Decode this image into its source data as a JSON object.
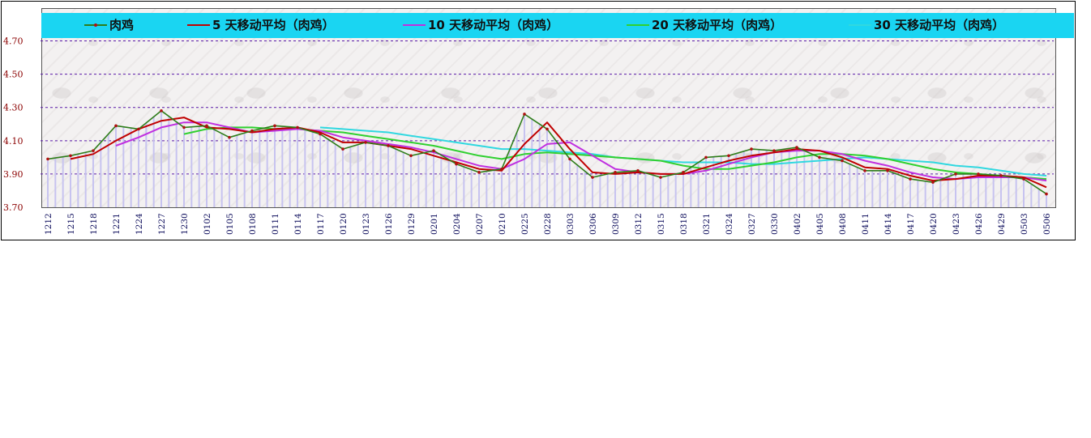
{
  "chart_data": {
    "type": "line",
    "title": "",
    "xlabel": "",
    "ylabel": "",
    "ylim": [
      3.7,
      4.8
    ],
    "yticks": [
      "3.70",
      "3.90",
      "4.10",
      "4.30",
      "4.50",
      "4.70"
    ],
    "grid": "horizontal dashed",
    "legend_position": "top",
    "x": [
      "1212",
      "1215",
      "1218",
      "1221",
      "1224",
      "1227",
      "1230",
      "0102",
      "0105",
      "0108",
      "0111",
      "0114",
      "0117",
      "0120",
      "0123",
      "0126",
      "0129",
      "0201",
      "0204",
      "0207",
      "0210",
      "0225",
      "0228",
      "0303",
      "0306",
      "0309",
      "0312",
      "0315",
      "0318",
      "0321",
      "0324",
      "0327",
      "0330",
      "0402",
      "0405",
      "0408",
      "0411",
      "0414",
      "0417",
      "0420",
      "0423",
      "0426",
      "0429",
      "0503",
      "0506"
    ],
    "series": [
      {
        "name": "肉鸡",
        "color": "#2e7d1a",
        "values": [
          3.99,
          4.01,
          4.04,
          4.19,
          4.17,
          4.28,
          4.18,
          4.19,
          4.12,
          4.16,
          4.19,
          4.18,
          4.14,
          4.05,
          4.09,
          4.07,
          4.01,
          4.04,
          3.96,
          3.91,
          3.93,
          4.26,
          4.17,
          3.99,
          3.88,
          3.91,
          3.92,
          3.88,
          3.91,
          4.0,
          4.01,
          4.05,
          4.04,
          4.06,
          4.0,
          3.98,
          3.92,
          3.92,
          3.87,
          3.85,
          3.9,
          3.9,
          3.89,
          3.87,
          3.78
        ]
      },
      {
        "name": "5 天移动平均（肉鸡）",
        "color": "#c00000",
        "values": [
          null,
          3.99,
          4.02,
          4.1,
          4.17,
          4.22,
          4.24,
          4.18,
          4.17,
          4.15,
          4.17,
          4.18,
          4.15,
          4.09,
          4.09,
          4.07,
          4.05,
          4.01,
          3.97,
          3.93,
          3.92,
          4.08,
          4.21,
          4.05,
          3.91,
          3.9,
          3.91,
          3.9,
          3.9,
          3.94,
          3.98,
          4.01,
          4.03,
          4.05,
          4.04,
          4.0,
          3.94,
          3.93,
          3.89,
          3.86,
          3.87,
          3.89,
          3.89,
          3.88,
          3.82
        ]
      },
      {
        "name": "10 天移动平均（肉鸡）",
        "color": "#c030e0",
        "values": [
          null,
          null,
          null,
          4.07,
          4.12,
          4.18,
          4.21,
          4.21,
          4.18,
          4.15,
          4.16,
          4.17,
          4.16,
          4.12,
          4.1,
          4.08,
          4.06,
          4.03,
          3.99,
          3.95,
          3.93,
          3.99,
          4.08,
          4.09,
          4.01,
          3.93,
          3.91,
          3.9,
          3.9,
          3.92,
          3.96,
          4.0,
          4.03,
          4.04,
          4.04,
          4.02,
          3.98,
          3.95,
          3.91,
          3.88,
          3.87,
          3.88,
          3.88,
          3.88,
          3.86
        ]
      },
      {
        "name": "20 天移动平均（肉鸡）",
        "color": "#30d030",
        "values": [
          null,
          null,
          null,
          null,
          null,
          null,
          4.14,
          4.17,
          4.18,
          4.18,
          4.17,
          4.17,
          4.16,
          4.15,
          4.13,
          4.11,
          4.09,
          4.07,
          4.04,
          4.01,
          3.99,
          4.02,
          4.03,
          4.02,
          4.01,
          4.0,
          3.99,
          3.98,
          3.95,
          3.93,
          3.93,
          3.95,
          3.97,
          4.0,
          4.02,
          4.02,
          4.01,
          3.99,
          3.96,
          3.93,
          3.91,
          3.9,
          3.89,
          3.88,
          3.87
        ]
      },
      {
        "name": "30 天移动平均（肉鸡）",
        "color": "#30d8e0",
        "values": [
          null,
          null,
          null,
          null,
          null,
          null,
          null,
          null,
          null,
          null,
          null,
          null,
          4.18,
          4.17,
          4.16,
          4.15,
          4.13,
          4.11,
          4.09,
          4.07,
          4.05,
          4.05,
          4.04,
          4.03,
          4.02,
          4.0,
          3.99,
          3.98,
          3.97,
          3.97,
          3.97,
          3.96,
          3.96,
          3.97,
          3.98,
          3.99,
          4.0,
          3.99,
          3.98,
          3.97,
          3.95,
          3.94,
          3.92,
          3.9,
          3.89
        ]
      }
    ]
  },
  "colors": {
    "legend_bg": "#1ad5f2",
    "grid": "#5a1aa8",
    "bars": "#c7c3f0",
    "ytick": "#8b0000",
    "xtick": "#0a0a5a"
  }
}
